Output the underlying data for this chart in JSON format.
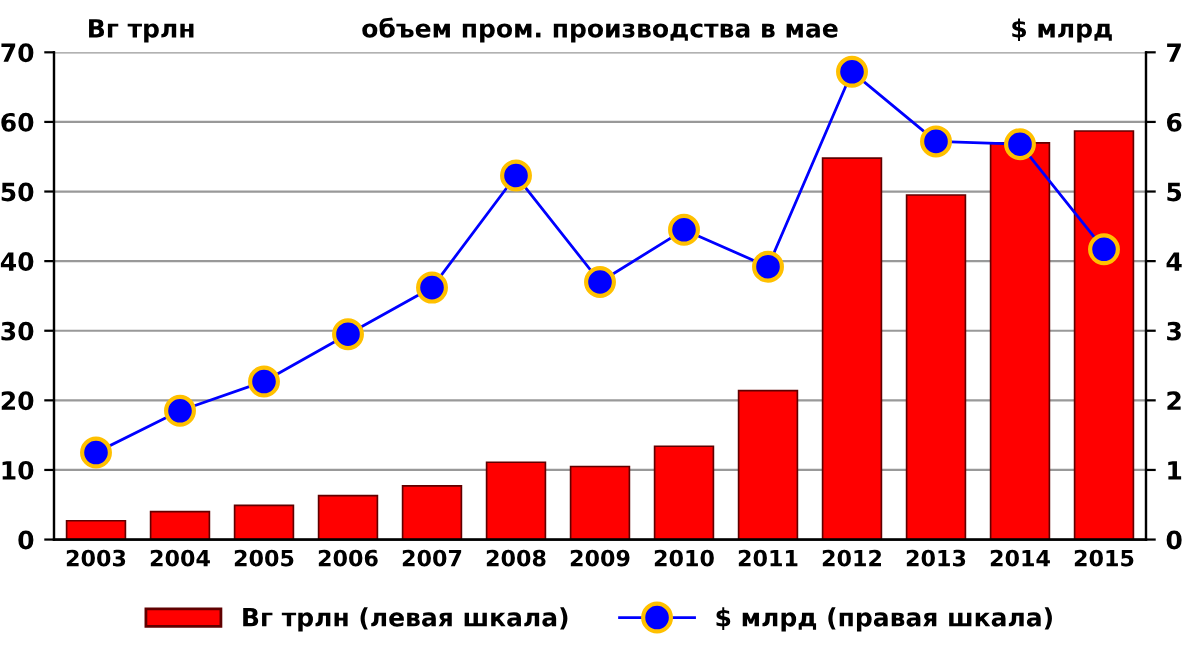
{
  "chart_data": {
    "type": "bar",
    "title": "объем пром. производства в мае",
    "ylabel": "Вг трлн",
    "y2label": "$ млрд",
    "categories": [
      "2003",
      "2004",
      "2005",
      "2006",
      "2007",
      "2008",
      "2009",
      "2010",
      "2011",
      "2012",
      "2013",
      "2014",
      "2015"
    ],
    "series": [
      {
        "name": "Вг трлн (левая шкала)",
        "color": "#ff0000",
        "values": [
          2.7,
          4.0,
          4.9,
          6.3,
          7.7,
          11.1,
          10.5,
          13.4,
          21.4,
          54.8,
          49.5,
          57.0,
          58.7
        ]
      },
      {
        "name": "$ млрд (правая шкала)",
        "type": "line",
        "axis": "y2",
        "color": "#0000ff",
        "marker": "circle",
        "values": [
          1.25,
          1.85,
          2.27,
          2.95,
          3.62,
          5.23,
          3.7,
          4.45,
          3.92,
          6.72,
          5.72,
          5.68,
          4.17
        ]
      }
    ],
    "ylim": [
      0,
      70
    ],
    "yticks": [
      0,
      10,
      20,
      30,
      40,
      50,
      60,
      70
    ],
    "y2lim": [
      0,
      7
    ],
    "y2ticks": [
      0,
      1,
      2,
      3,
      4,
      5,
      6,
      7
    ],
    "grid": "y",
    "legend": "bottom"
  }
}
